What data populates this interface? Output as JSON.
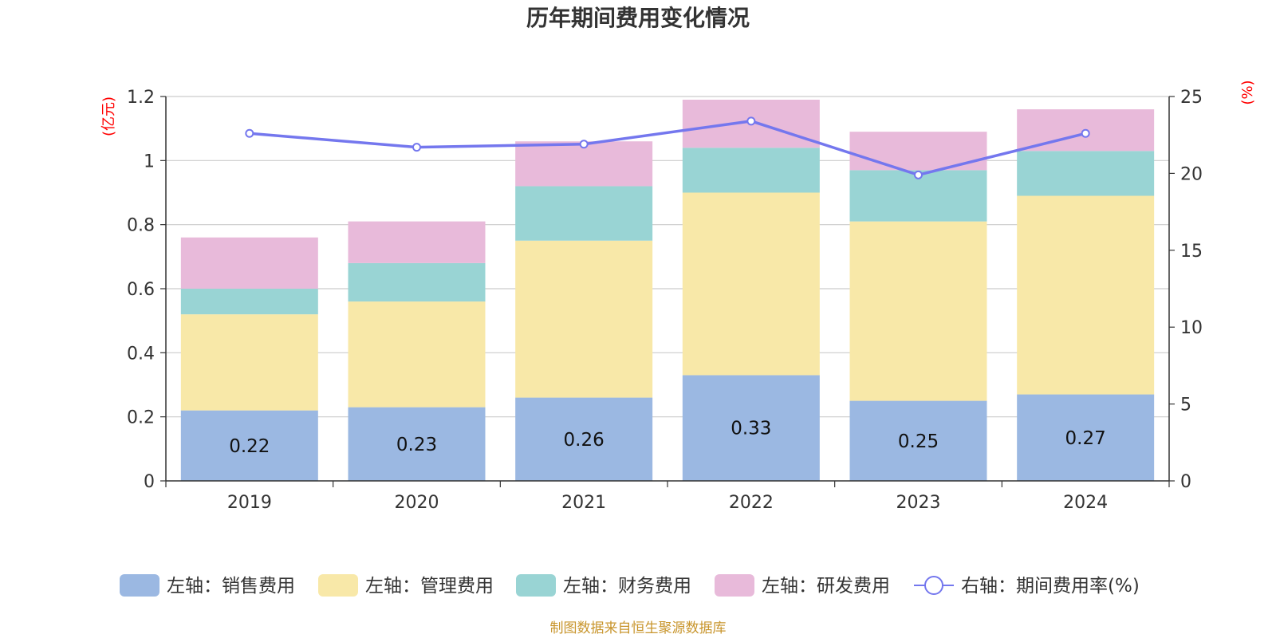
{
  "chart_data": {
    "type": "bar",
    "title": "历年期间费用变化情况",
    "categories": [
      "2019",
      "2020",
      "2021",
      "2022",
      "2023",
      "2024"
    ],
    "y_left": {
      "unit": "(亿元)",
      "min": 0,
      "max": 1.2,
      "ticks": [
        "0",
        "0.2",
        "0.4",
        "0.6",
        "0.8",
        "1",
        "1.2"
      ]
    },
    "y_right": {
      "unit": "(%)",
      "min": 0,
      "max": 25,
      "ticks": [
        "0",
        "5",
        "10",
        "15",
        "20",
        "25"
      ]
    },
    "series": [
      {
        "name": "左轴：销售费用",
        "type": "bar",
        "axis": "left",
        "stack": "total",
        "color": "#9bb8e2",
        "values": [
          0.22,
          0.23,
          0.26,
          0.33,
          0.25,
          0.27
        ],
        "labels": [
          "0.22",
          "0.23",
          "0.26",
          "0.33",
          "0.25",
          "0.27"
        ]
      },
      {
        "name": "左轴：管理费用",
        "type": "bar",
        "axis": "left",
        "stack": "total",
        "color": "#f8e8a8",
        "values": [
          0.3,
          0.33,
          0.49,
          0.57,
          0.56,
          0.62
        ]
      },
      {
        "name": "左轴：财务费用",
        "type": "bar",
        "axis": "left",
        "stack": "total",
        "color": "#99d4d4",
        "values": [
          0.08,
          0.12,
          0.17,
          0.14,
          0.16,
          0.14
        ]
      },
      {
        "name": "左轴：研发费用",
        "type": "bar",
        "axis": "left",
        "stack": "total",
        "color": "#e8bada",
        "values": [
          0.16,
          0.13,
          0.14,
          0.15,
          0.12,
          0.13
        ]
      },
      {
        "name": "右轴：期间费用率(%)",
        "type": "line",
        "axis": "right",
        "color": "#7477ee",
        "values": [
          22.6,
          21.7,
          21.9,
          23.4,
          19.9,
          22.6
        ]
      }
    ],
    "grid": true,
    "legend_position": "bottom"
  },
  "source_note": "制图数据来自恒生聚源数据库"
}
